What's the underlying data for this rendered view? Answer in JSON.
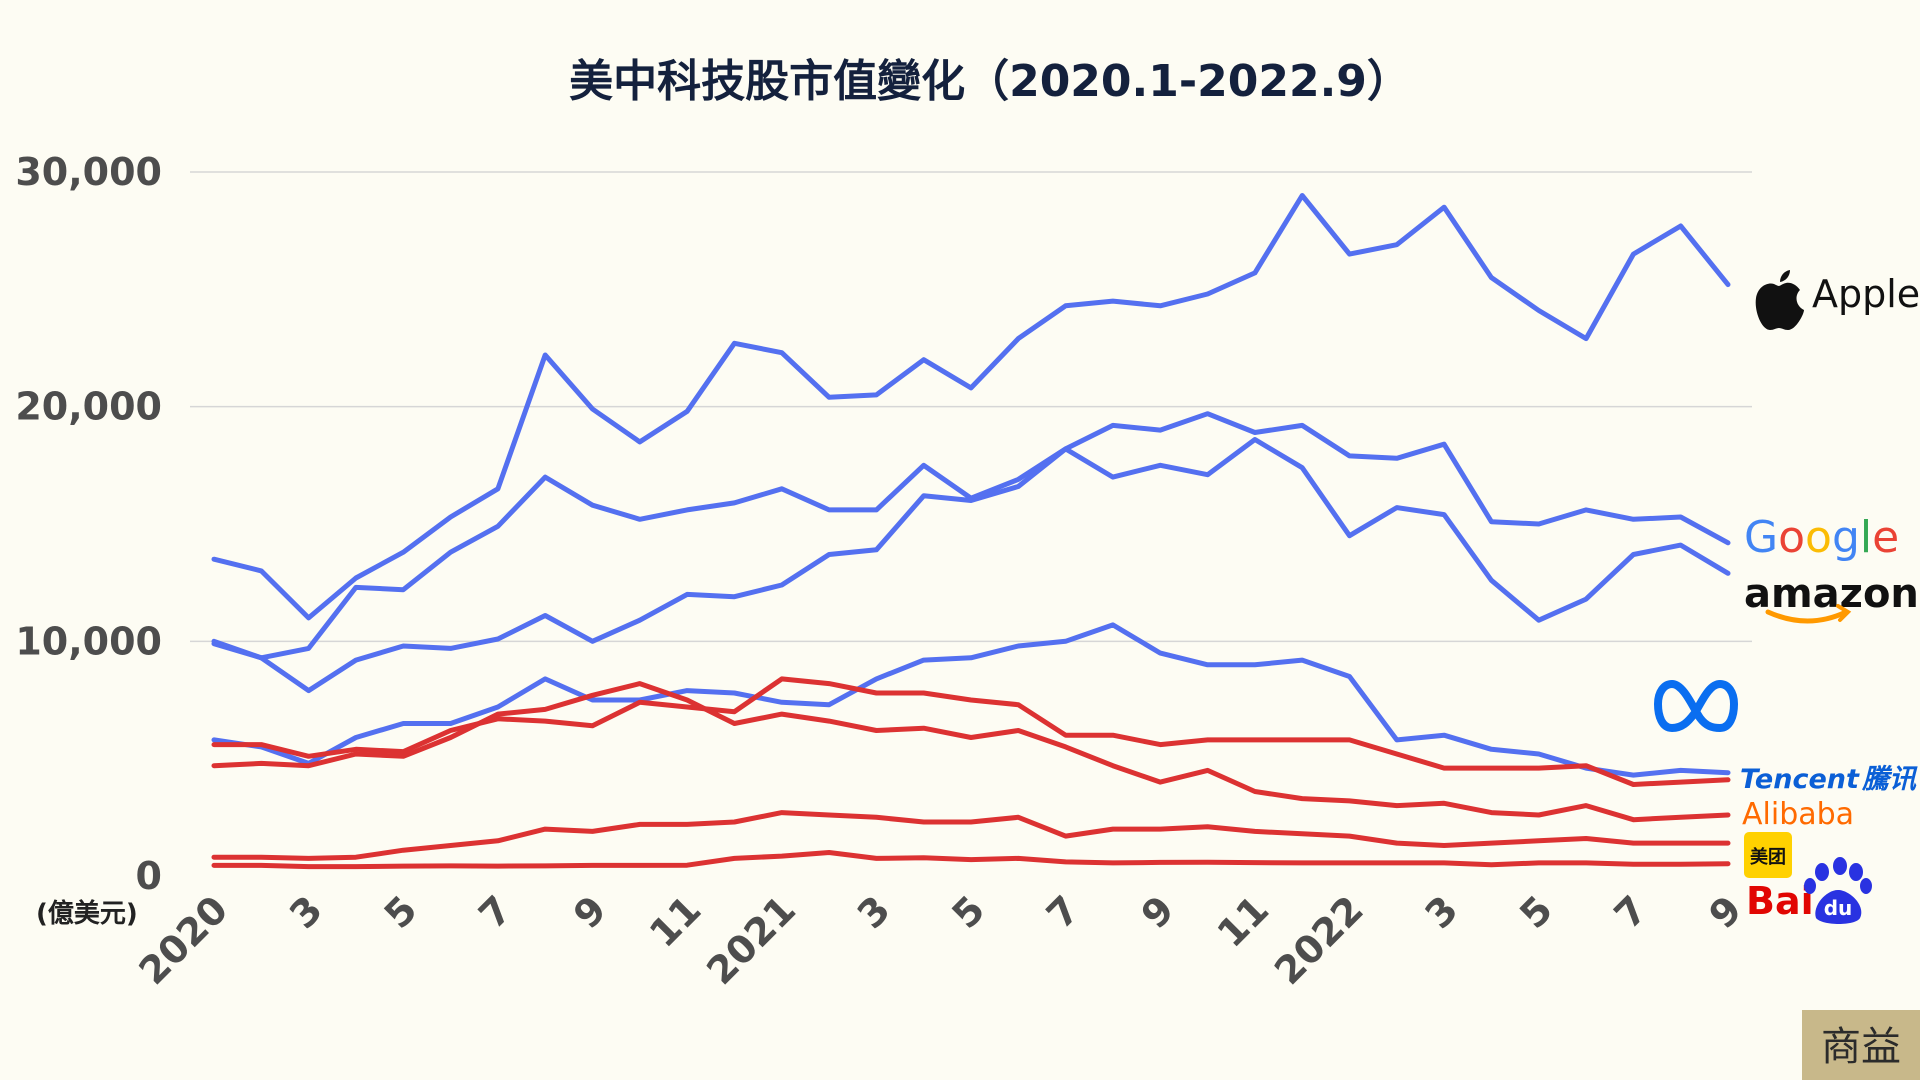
{
  "chart_data": {
    "type": "line",
    "title": "美中科技股市值變化（2020.1-2022.9）",
    "ylabel": "(億美元)",
    "ylim": [
      0,
      30000
    ],
    "yticks": [
      "0",
      "10,000",
      "20,000",
      "30,000"
    ],
    "yticks_values": [
      0,
      10000,
      20000,
      30000
    ],
    "x_tick_labels": [
      "2020",
      "3",
      "5",
      "7",
      "9",
      "11",
      "2021",
      "3",
      "5",
      "7",
      "9",
      "11",
      "2022",
      "3",
      "5",
      "7",
      "9"
    ],
    "grid": true,
    "series": [
      {
        "name": "Apple",
        "color": "#5470f0",
        "values": [
          13500,
          13000,
          11000,
          12700,
          13800,
          15300,
          16500,
          22200,
          19900,
          18500,
          19800,
          22700,
          22300,
          20400,
          20500,
          22000,
          20800,
          22900,
          24300,
          24500,
          24300,
          24800,
          25700,
          29000,
          26500,
          26900,
          28500,
          25500,
          24100,
          22900,
          26500,
          27700,
          25200
        ]
      },
      {
        "name": "Google",
        "color": "#5470f0",
        "values": [
          9900,
          9300,
          9700,
          12300,
          12200,
          13800,
          14900,
          17000,
          15800,
          15200,
          15600,
          15900,
          16500,
          15600,
          15600,
          17500,
          16100,
          16900,
          18200,
          19200,
          19000,
          19700,
          18900,
          19200,
          17900,
          17800,
          18400,
          15100,
          15000,
          15600,
          15200,
          15300,
          14200
        ]
      },
      {
        "name": "Amazon",
        "color": "#5470f0",
        "values": [
          10000,
          9300,
          7900,
          9200,
          9800,
          9700,
          10100,
          11100,
          10000,
          10900,
          12000,
          11900,
          12400,
          13700,
          13900,
          16200,
          16000,
          16600,
          18200,
          17000,
          17500,
          17100,
          18600,
          17400,
          14500,
          15700,
          15400,
          12600,
          10900,
          11800,
          13700,
          14100,
          12900
        ]
      },
      {
        "name": "Meta",
        "color": "#5470f0",
        "values": [
          5800,
          5500,
          4800,
          5900,
          6500,
          6500,
          7200,
          8400,
          7500,
          7500,
          7900,
          7800,
          7400,
          7300,
          8400,
          9200,
          9300,
          9800,
          10000,
          10700,
          9500,
          9000,
          9000,
          9200,
          8500,
          5800,
          6000,
          5400,
          5200,
          4600,
          4300,
          4500,
          4400
        ]
      },
      {
        "name": "Tencent 騰訊",
        "color": "#dc3232",
        "values": [
          5600,
          5600,
          5100,
          5400,
          5300,
          6200,
          6700,
          6600,
          6400,
          7400,
          7200,
          7000,
          8400,
          8200,
          7800,
          7800,
          7500,
          7300,
          6000,
          6000,
          5600,
          5800,
          5800,
          5800,
          5800,
          5200,
          4600,
          4600,
          4600,
          4700,
          3900,
          4000,
          4100
        ]
      },
      {
        "name": "Alibaba",
        "color": "#dc3232",
        "values": [
          4700,
          4800,
          4700,
          5200,
          5100,
          5900,
          6900,
          7100,
          7700,
          8200,
          7500,
          6500,
          6900,
          6600,
          6200,
          6300,
          5900,
          6200,
          5500,
          4700,
          4000,
          4500,
          3600,
          3300,
          3200,
          3000,
          3100,
          2700,
          2600,
          3000,
          2400,
          2500,
          2600
        ]
      },
      {
        "name": "美团",
        "color": "#dc3232",
        "values": [
          800,
          800,
          750,
          800,
          1100,
          1300,
          1500,
          2000,
          1900,
          2200,
          2200,
          2300,
          2700,
          2600,
          2500,
          2300,
          2300,
          2500,
          1700,
          2000,
          2000,
          2100,
          1900,
          1800,
          1700,
          1400,
          1300,
          1400,
          1500,
          1600,
          1400,
          1400,
          1400
        ]
      },
      {
        "name": "Baidu",
        "color": "#dc3232",
        "values": [
          450,
          450,
          400,
          400,
          420,
          430,
          420,
          430,
          450,
          450,
          460,
          750,
          850,
          1000,
          750,
          780,
          700,
          750,
          600,
          560,
          580,
          590,
          570,
          560,
          560,
          560,
          560,
          480,
          560,
          560,
          500,
          500,
          520
        ]
      }
    ]
  },
  "legend_labels": {
    "apple": "Apple",
    "google": "Google",
    "amazon": "amazon",
    "tencent": "Tencent",
    "tencent_cn": "騰讯",
    "alibaba": "Alibaba",
    "meituan": "美团",
    "baidu_bai": "Bai",
    "baidu_du": "du"
  },
  "watermark": "商益",
  "colors": {
    "us_series": "#5470f0",
    "cn_series": "#dc3232",
    "background": "#fdfcf3"
  }
}
